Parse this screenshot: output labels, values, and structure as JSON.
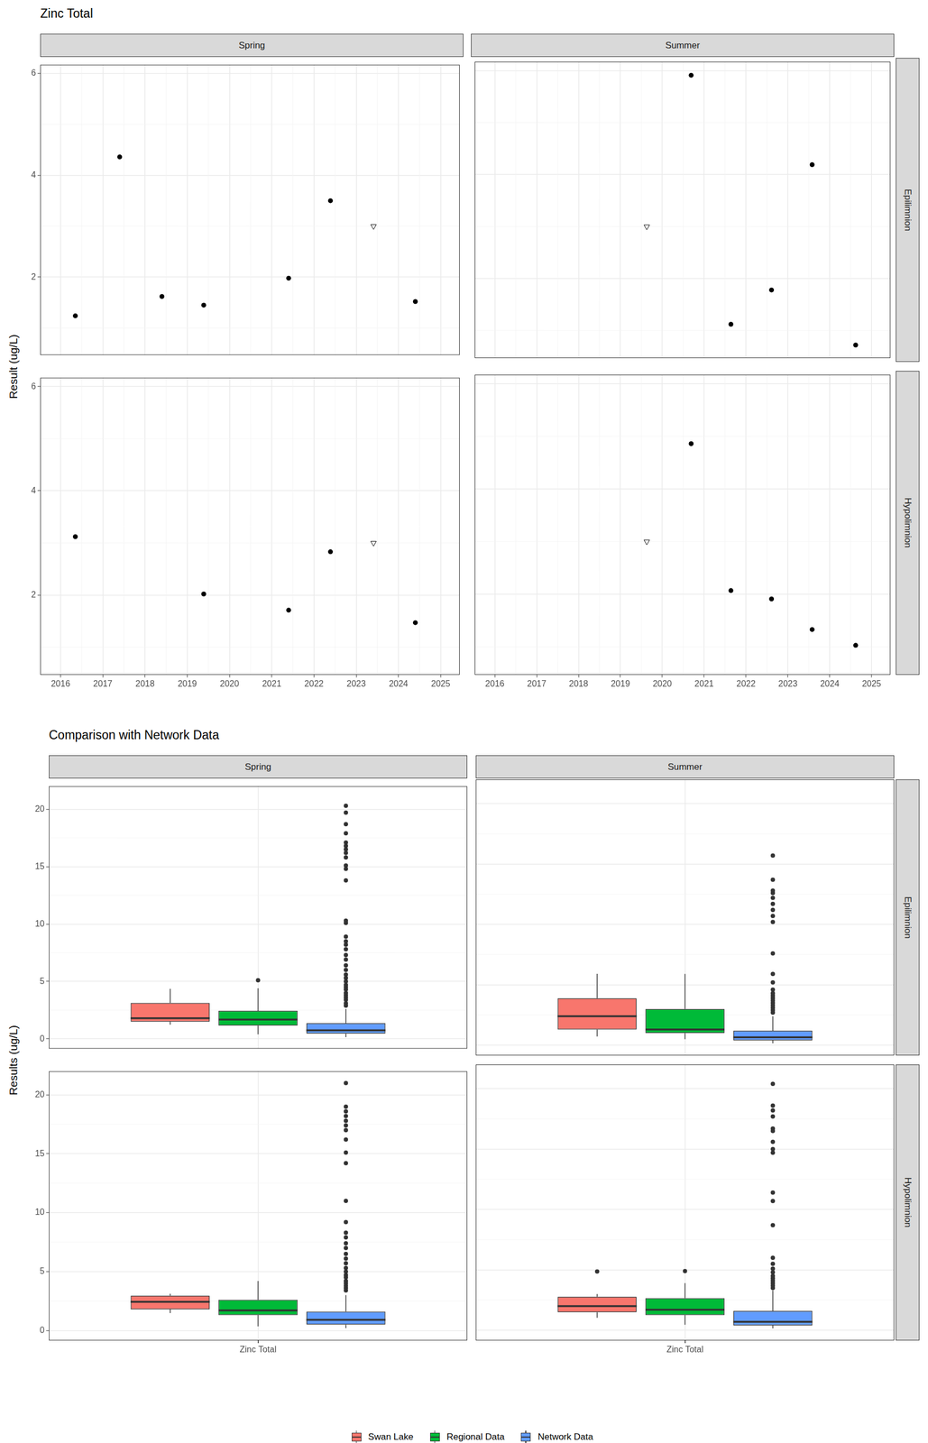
{
  "chart_data": [
    {
      "type": "scatter",
      "title": "Zinc Total",
      "y_label": "Result (ug/L)",
      "columns": [
        "Spring",
        "Summer"
      ],
      "rows": [
        "Epilimnion",
        "Hypolimnion"
      ],
      "xlim": [
        2015.52,
        2025.45
      ],
      "xticks": [
        2016,
        2017,
        2018,
        2019,
        2020,
        2021,
        2022,
        2023,
        2024,
        2025
      ],
      "ylim": [
        0.47,
        6.17
      ],
      "yticks": [
        2,
        4,
        6
      ],
      "grid": true,
      "panels": [
        {
          "column": "Spring",
          "row": "Epilimnion",
          "series": [
            {
              "marker": "circle",
              "color": "#000000",
              "x": [
                2016.35,
                2017.4,
                2018.4,
                2019.39,
                2021.4,
                2022.39,
                2024.4
              ],
              "values": [
                1.24,
                4.36,
                1.62,
                1.45,
                1.98,
                3.5,
                1.52
              ]
            },
            {
              "marker": "triangle-down",
              "color": "#000000",
              "x": [
                2023.41
              ],
              "values": [
                3.0
              ]
            }
          ]
        },
        {
          "column": "Summer",
          "row": "Epilimnion",
          "series": [
            {
              "marker": "circle",
              "color": "#000000",
              "x": [
                2020.69,
                2021.64,
                2022.61,
                2023.58,
                2024.62
              ],
              "values": [
                5.91,
                1.12,
                1.78,
                4.19,
                0.72
              ]
            },
            {
              "marker": "triangle-down",
              "color": "#000000",
              "x": [
                2019.63
              ],
              "values": [
                3.0
              ]
            }
          ]
        },
        {
          "column": "Spring",
          "row": "Hypolimnion",
          "series": [
            {
              "marker": "circle",
              "color": "#000000",
              "x": [
                2016.35,
                2019.39,
                2021.4,
                2022.39,
                2024.4
              ],
              "values": [
                3.12,
                2.02,
                1.71,
                2.83,
                1.47
              ]
            },
            {
              "marker": "triangle-down",
              "color": "#000000",
              "x": [
                2023.41
              ],
              "values": [
                3.0
              ]
            }
          ]
        },
        {
          "column": "Summer",
          "row": "Hypolimnion",
          "series": [
            {
              "marker": "circle",
              "color": "#000000",
              "x": [
                2020.69,
                2021.64,
                2022.61,
                2023.58,
                2024.62
              ],
              "values": [
                4.86,
                2.07,
                1.91,
                1.33,
                1.03
              ]
            },
            {
              "marker": "triangle-down",
              "color": "#000000",
              "x": [
                2019.63
              ],
              "values": [
                3.0
              ]
            }
          ]
        }
      ]
    },
    {
      "type": "box",
      "title": "Comparison with Network Data",
      "y_label": "Results (ug/L)",
      "categories": [
        "Zinc Total"
      ],
      "columns": [
        "Spring",
        "Summer"
      ],
      "rows": [
        "Epilimnion",
        "Hypolimnion"
      ],
      "ylim": [
        -0.85,
        22
      ],
      "yticks": [
        0,
        5,
        10,
        15,
        20
      ],
      "grid": true,
      "legend": "bottom",
      "series": [
        {
          "name": "Swan Lake",
          "color": "#F8766D"
        },
        {
          "name": "Regional Data",
          "color": "#00BA38"
        },
        {
          "name": "Network Data",
          "color": "#619CFF"
        }
      ],
      "panels": [
        {
          "column": "Spring",
          "row": "Epilimnion",
          "whisker_low": [
            1.24,
            0.4,
            0.15
          ],
          "q1": [
            1.5,
            1.15,
            0.45
          ],
          "median": [
            1.8,
            1.68,
            0.75
          ],
          "q3": [
            3.13,
            2.44,
            1.37
          ],
          "whisker_high": [
            4.36,
            4.4,
            2.6
          ],
          "outliers": [
            [],
            [
              5.1
            ],
            [
              2.9,
              3.1,
              3.4,
              3.6,
              3.8,
              4.0,
              4.3,
              4.5,
              4.7,
              5.0,
              5.3,
              5.6,
              6.0,
              6.4,
              6.9,
              7.3,
              7.8,
              8.2,
              8.5,
              8.9,
              10.1,
              10.3,
              13.8,
              14.8,
              15.1,
              15.8,
              16.2,
              16.5,
              16.8,
              17.1,
              17.9,
              18.7,
              19.7,
              20.3
            ]
          ]
        },
        {
          "column": "Summer",
          "row": "Epilimnion",
          "whisker_low": [
            0.72,
            0.5,
            0.15
          ],
          "q1": [
            1.29,
            1.0,
            0.4
          ],
          "median": [
            2.39,
            1.3,
            0.65
          ],
          "q3": [
            3.89,
            3.0,
            1.2
          ],
          "whisker_high": [
            5.91,
            5.9,
            2.4
          ],
          "outliers": [
            [],
            [],
            [
              2.7,
              2.9,
              3.1,
              3.3,
              3.5,
              3.7,
              3.9,
              4.1,
              4.3,
              4.6,
              5.2,
              5.9,
              7.6,
              10.2,
              10.7,
              11.2,
              11.7,
              12.2,
              12.6,
              12.8,
              13.7,
              15.7
            ]
          ]
        },
        {
          "column": "Spring",
          "row": "Hypolimnion",
          "whisker_low": [
            1.47,
            0.35,
            0.2
          ],
          "q1": [
            1.79,
            1.3,
            0.5
          ],
          "median": [
            2.43,
            1.7,
            0.9
          ],
          "q3": [
            2.96,
            2.6,
            1.6
          ],
          "whisker_high": [
            3.12,
            4.2,
            3.0
          ],
          "outliers": [
            [],
            [],
            [
              3.4,
              3.6,
              3.8,
              4.0,
              4.2,
              4.5,
              4.7,
              5.0,
              5.3,
              5.7,
              6.1,
              6.5,
              7.0,
              7.4,
              7.9,
              8.3,
              9.2,
              11.0,
              14.2,
              15.1,
              16.2,
              17.0,
              17.4,
              17.8,
              18.2,
              18.6,
              19.0,
              21.0
            ]
          ]
        },
        {
          "column": "Summer",
          "row": "Hypolimnion",
          "whisker_low": [
            1.03,
            0.45,
            0.15
          ],
          "q1": [
            1.48,
            1.25,
            0.4
          ],
          "median": [
            1.99,
            1.7,
            0.7
          ],
          "q3": [
            2.77,
            2.65,
            1.6
          ],
          "whisker_high": [
            3.0,
            3.9,
            3.3
          ],
          "outliers": [
            [
              4.86
            ],
            [
              4.9
            ],
            [
              3.5,
              3.7,
              3.9,
              4.1,
              4.3,
              4.5,
              4.8,
              5.1,
              5.5,
              6.0,
              8.7,
              10.7,
              11.4,
              14.7,
              15.0,
              15.6,
              16.5,
              16.7,
              17.7,
              18.2,
              18.6,
              20.4
            ]
          ]
        }
      ]
    }
  ]
}
